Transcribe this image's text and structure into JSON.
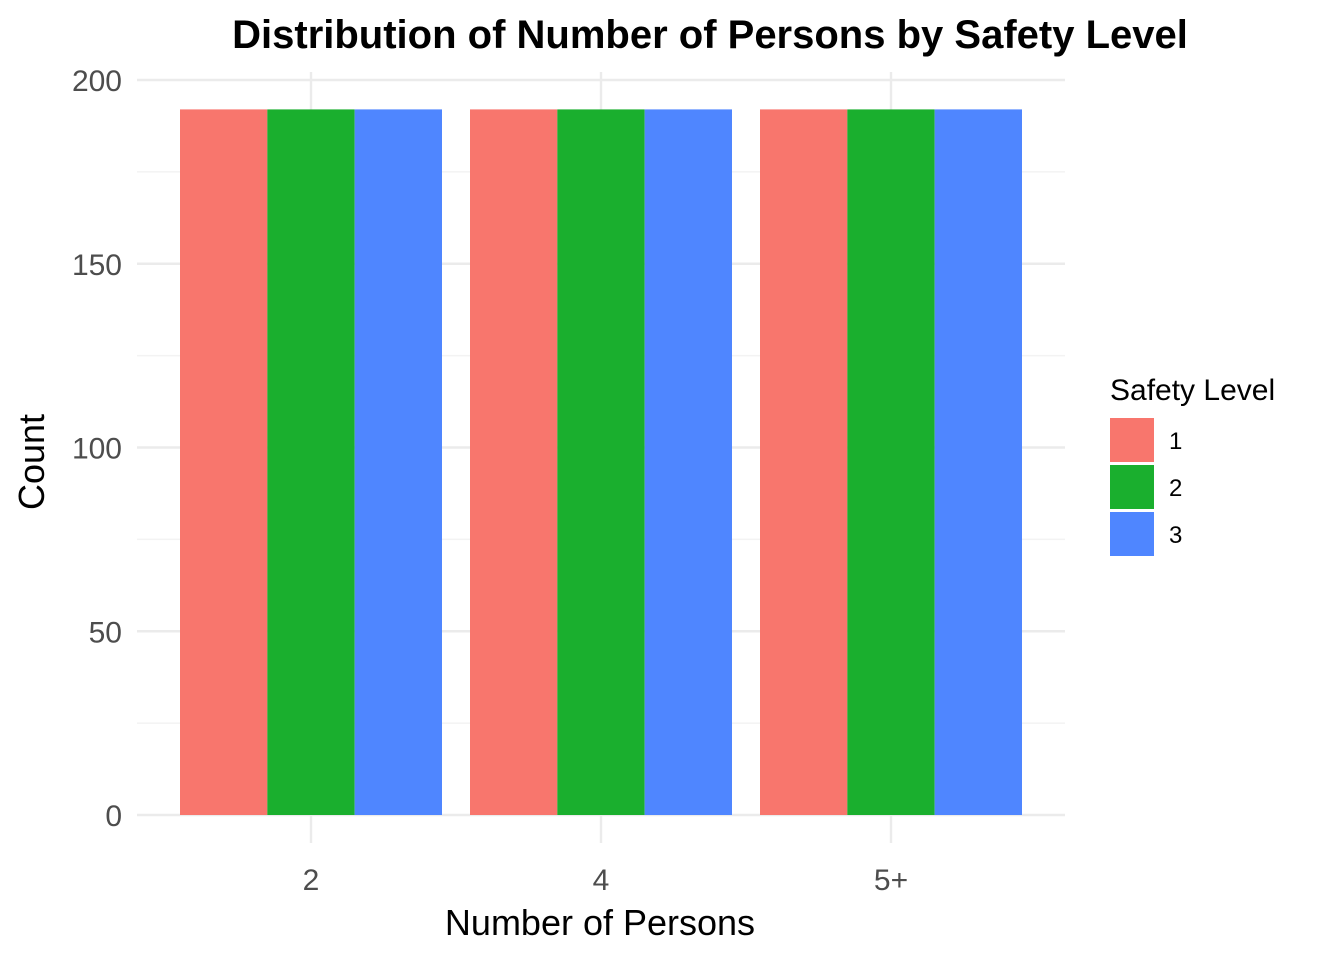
{
  "chart_data": {
    "type": "bar",
    "title": "Distribution of Number of Persons by Safety Level",
    "xlabel": "Number of Persons",
    "ylabel": "Count",
    "categories": [
      "2",
      "4",
      "5+"
    ],
    "series": [
      {
        "name": "1",
        "values": [
          192,
          192,
          192
        ],
        "color": "#F8766D"
      },
      {
        "name": "2",
        "values": [
          192,
          192,
          192
        ],
        "color": "#1AAF2E"
      },
      {
        "name": "3",
        "values": [
          192,
          192,
          192
        ],
        "color": "#4F86FF"
      }
    ],
    "ylim": [
      0,
      200
    ],
    "yticks": [
      0,
      50,
      100,
      150,
      200
    ],
    "grid": true,
    "legend": {
      "title": "Safety Level",
      "placement": "right"
    }
  }
}
